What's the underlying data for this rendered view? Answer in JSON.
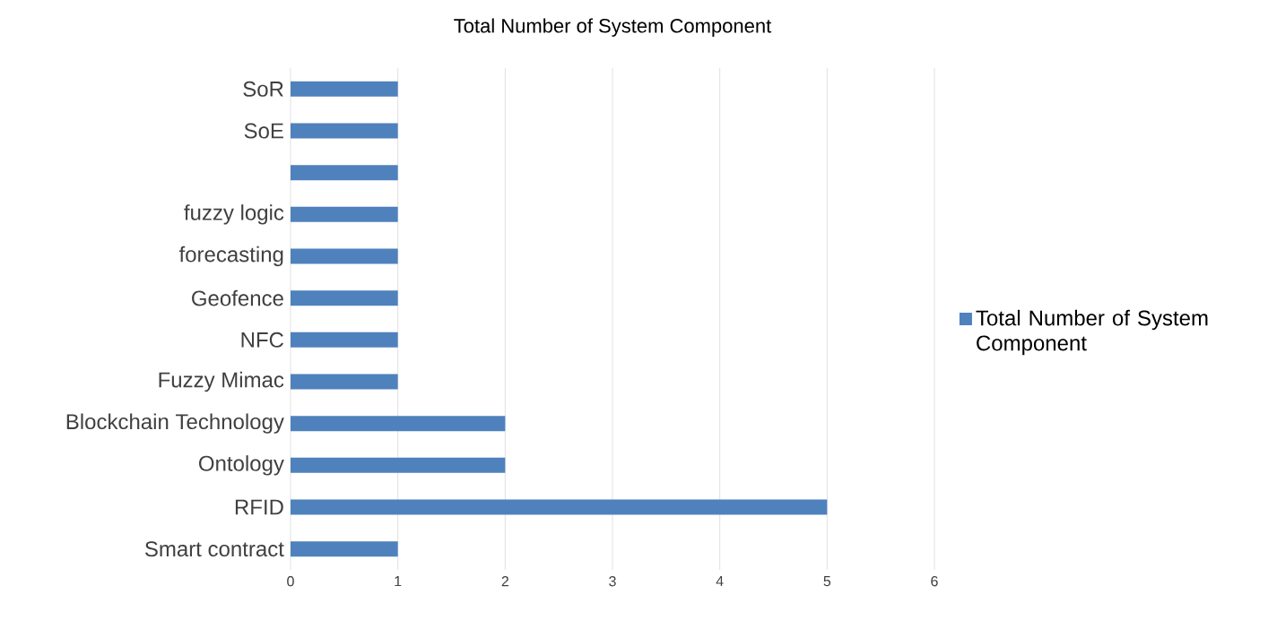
{
  "chart_data": {
    "type": "bar",
    "orientation": "horizontal",
    "title": "Total Number of System Component",
    "categories": [
      "SoR",
      "SoE",
      null,
      "fuzzy logic",
      "forecasting",
      "Geofence",
      "NFC",
      "Fuzzy Mimac",
      "Blockchain Technology",
      "Ontology",
      "RFID",
      "Smart contract"
    ],
    "series": [
      {
        "name": "Total Number of System Component",
        "color": "#4f81bd",
        "values": [
          1,
          1,
          1,
          1,
          1,
          1,
          1,
          1,
          2,
          2,
          5,
          1
        ]
      }
    ],
    "xlim": [
      0,
      6
    ],
    "xticks": [
      0,
      1,
      2,
      3,
      4,
      5,
      6
    ],
    "grid": "x",
    "legend": "right"
  }
}
